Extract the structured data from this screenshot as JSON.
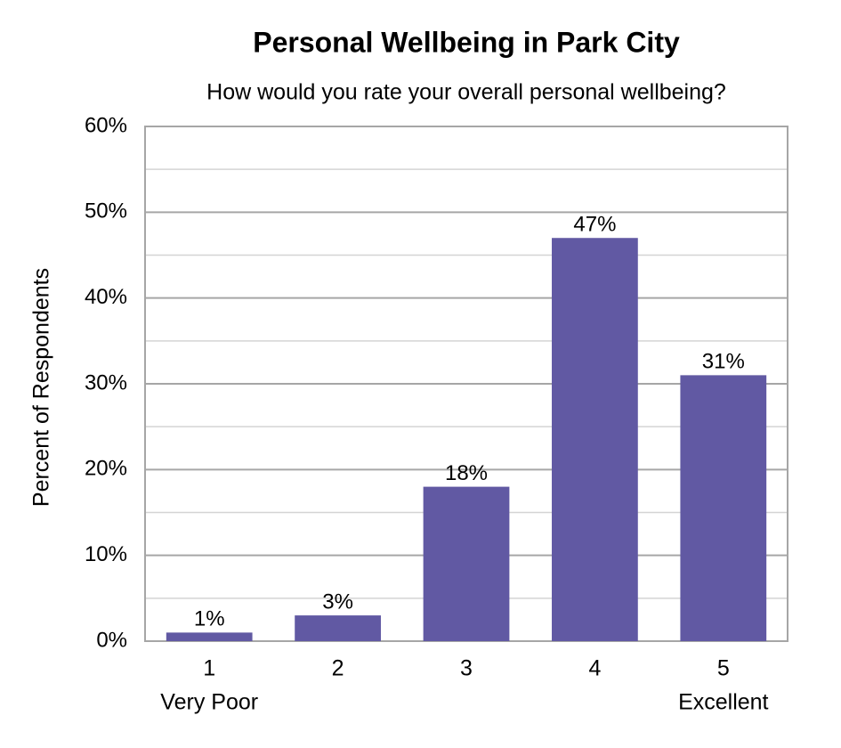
{
  "chart_data": {
    "type": "bar",
    "title": "Personal Wellbeing in Park City",
    "subtitle": "How would you rate your overall personal wellbeing?",
    "y_label": "Percent of Respondents",
    "categories": [
      "1",
      "2",
      "3",
      "4",
      "5"
    ],
    "category_sublabels": [
      "Very Poor",
      null,
      null,
      null,
      "Excellent"
    ],
    "values": [
      1,
      3,
      18,
      47,
      31
    ],
    "value_labels": [
      "1%",
      "3%",
      "18%",
      "47%",
      "31%"
    ],
    "color": "#6159a3",
    "ylim": [
      0,
      60
    ],
    "yticks": [
      {
        "value": 0,
        "label": "0%"
      },
      {
        "value": 10,
        "label": "10%"
      },
      {
        "value": 20,
        "label": "20%"
      },
      {
        "value": 30,
        "label": "30%"
      },
      {
        "value": 40,
        "label": "40%"
      },
      {
        "value": 50,
        "label": "50%"
      },
      {
        "value": 60,
        "label": "60%"
      }
    ],
    "minor_yticks": [
      5,
      15,
      25,
      35,
      45,
      55
    ],
    "grid": true
  }
}
